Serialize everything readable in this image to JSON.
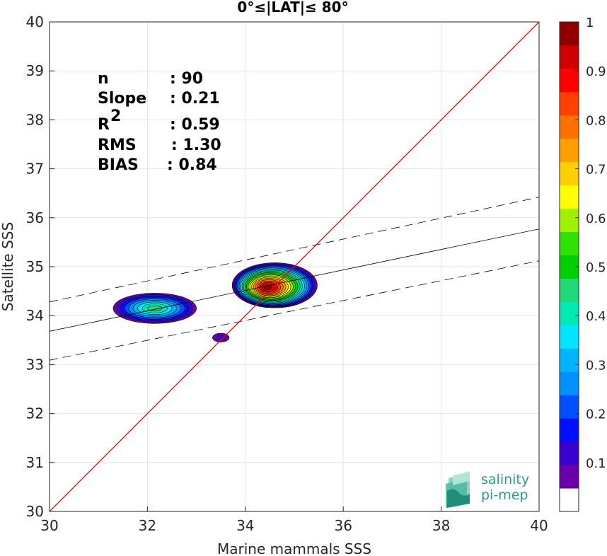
{
  "chart_data": {
    "type": "heatmap",
    "title": "0°≤|LAT|≤ 80°",
    "xlabel": "Marine mammals SSS",
    "ylabel": "Satellite SSS",
    "xlim": [
      30,
      40
    ],
    "ylim": [
      30,
      40
    ],
    "xticks": [
      "30",
      "32",
      "34",
      "36",
      "38",
      "40"
    ],
    "yticks": [
      "30",
      "31",
      "32",
      "33",
      "34",
      "35",
      "36",
      "37",
      "38",
      "39",
      "40"
    ],
    "grid": true,
    "stats": [
      {
        "label": "n",
        "value": ": 90"
      },
      {
        "label": "Slope",
        "value": ": 0.21"
      },
      {
        "label": "R",
        "sup": "2",
        "value": ": 0.59"
      },
      {
        "label": "RMS",
        "value": ": 1.30"
      },
      {
        "label": "BIAS",
        "value": ": 0.84"
      }
    ],
    "identity_line": {
      "x": [
        30,
        40
      ],
      "y": [
        30,
        40
      ],
      "color": "#ff0000"
    },
    "regression_line": {
      "x": [
        30,
        40
      ],
      "y": [
        33.68,
        35.77
      ]
    },
    "regression_bounds": [
      {
        "x": [
          30,
          40
        ],
        "y": [
          34.28,
          36.42
        ]
      },
      {
        "x": [
          30,
          40
        ],
        "y": [
          33.09,
          35.12
        ]
      }
    ],
    "density_clusters": [
      {
        "cx": 32.15,
        "cy": 34.15,
        "rx": 0.85,
        "ry": 0.31,
        "peak": 0.45
      },
      {
        "cx": 34.6,
        "cy": 34.62,
        "rx": 0.87,
        "ry": 0.46,
        "peak": 1.0
      },
      {
        "cx": 33.5,
        "cy": 33.55,
        "rx": 0.17,
        "ry": 0.09,
        "peak": 0.1
      }
    ],
    "colorbar": {
      "min": 0,
      "max": 1,
      "ticks": [
        "0.1",
        "0.2",
        "0.3",
        "0.4",
        "0.5",
        "0.6",
        "0.7",
        "0.8",
        "0.9",
        "1"
      ],
      "colors": [
        "#ffffff",
        "#6a00aa",
        "#3a00d0",
        "#0010ff",
        "#0050ff",
        "#0090ff",
        "#00b4ff",
        "#00e4ff",
        "#00e8b4",
        "#20d878",
        "#00d000",
        "#30e000",
        "#a0f000",
        "#ffff00",
        "#ffd000",
        "#ffa000",
        "#ff7000",
        "#ff4000",
        "#ff0000",
        "#d00000",
        "#900000"
      ]
    }
  },
  "logo": {
    "line1": "salinity",
    "line2": "pi-mep"
  }
}
